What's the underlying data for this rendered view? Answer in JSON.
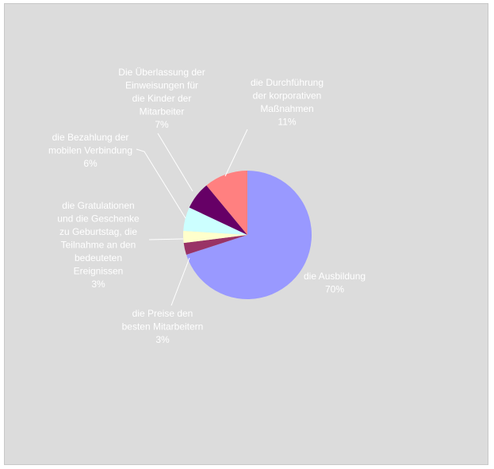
{
  "chart_data": {
    "type": "pie",
    "title": "",
    "slices": [
      {
        "label": [
          "die Ausbildung"
        ],
        "value": 70,
        "pct_label": "70%",
        "color": "#9999ff"
      },
      {
        "label": [
          "die Preise den",
          "besten Mitarbeitern"
        ],
        "value": 3,
        "pct_label": "3%",
        "color": "#993366"
      },
      {
        "label": [
          "die Gratulationen",
          "und die Geschenke",
          "zu Geburtstag, die",
          "Teilnahme an den",
          "bedeuteten",
          "Ereignissen"
        ],
        "value": 3,
        "pct_label": "3%",
        "color": "#ffffcc"
      },
      {
        "label": [
          "die Bezahlung der",
          "mobilen Verbindung"
        ],
        "value": 6,
        "pct_label": "6%",
        "color": "#ccffff"
      },
      {
        "label": [
          "Die Überlassung der",
          "Einweisungen für",
          "die Kinder der",
          "Mitarbeiter"
        ],
        "value": 7,
        "pct_label": "7%",
        "color": "#660066"
      },
      {
        "label": [
          "die Durchführung",
          "der korporativen",
          "Maßnahmen"
        ],
        "value": 11,
        "pct_label": "11%",
        "color": "#ff8080"
      }
    ],
    "start_angle_deg": 0,
    "direction": "clockwise",
    "legend": "none"
  }
}
